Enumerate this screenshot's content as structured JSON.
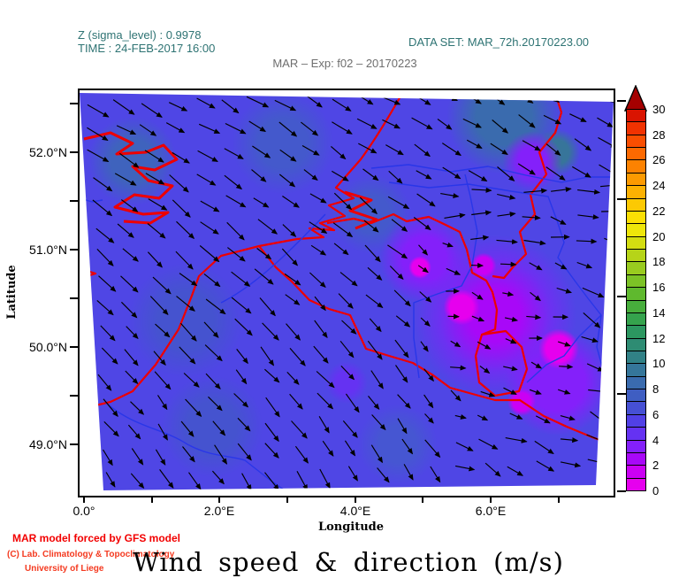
{
  "header": {
    "sigma_line": "Z (sigma_level) : 0.9978",
    "time_line": "TIME : 24-FEB-2017 16:00",
    "dataset_line": "DATA SET: MAR_72h.20170223.00",
    "experiment_line": "MAR – Exp: f02 – 20170223",
    "header_color": "#2e7373",
    "experiment_color": "#6e6e6e"
  },
  "axes": {
    "x_label": "Longitude",
    "y_label": "Latitude",
    "x_tick_labels": [
      "0.0°",
      "2.0°E",
      "4.0°E",
      "6.0°E"
    ],
    "y_tick_labels": [
      "52.0°N",
      "51.0°N",
      "50.0°N",
      "49.0°N"
    ]
  },
  "colorbar": {
    "min": 0,
    "max": 30,
    "label_step": 2,
    "labels": [
      "0",
      "2",
      "4",
      "6",
      "8",
      "10",
      "12",
      "14",
      "16",
      "18",
      "20",
      "22",
      "24",
      "26",
      "28",
      "30"
    ],
    "colors_bottom_to_top": [
      "#e600ee",
      "#cb00f4",
      "#a808f8",
      "#8420fa",
      "#6532f2",
      "#5140e6",
      "#4650d4",
      "#3f5ec2",
      "#3a6bae",
      "#35769a",
      "#318186",
      "#2e8c73",
      "#2c9760",
      "#35a34d",
      "#47ae3c",
      "#5fb92e",
      "#7cc226",
      "#99cb1f",
      "#b6d418",
      "#d3dd11",
      "#eee60a",
      "#fbdf04",
      "#fcc903",
      "#fcb102",
      "#fc9a01",
      "#fc8201",
      "#fc6901",
      "#f94e01",
      "#f13201",
      "#d91401"
    ],
    "overflow_color": "#a50000"
  },
  "footer": {
    "credit1": "MAR model forced by GFS model",
    "credit2": "(C) Lab. Climatology & Topoclimatology",
    "credit3": "University of Liege",
    "credit1_color": "#f20000",
    "credit23_color": "#f43a20",
    "title": "Wind speed & direction (m/s)"
  },
  "chart_data": {
    "type": "heatmap",
    "subtype": "wind-vector-map",
    "title": "Wind speed & direction (m/s)",
    "subtitle": "MAR – Exp: f02 – 20170223",
    "dataset": "MAR_72h.20170223.00",
    "sigma_level": 0.9978,
    "valid_time": "24-FEB-2017 16:00",
    "xlabel": "Longitude",
    "ylabel": "Latitude",
    "x_range_deg_east": [
      0.0,
      7.8
    ],
    "y_range_deg_north": [
      48.5,
      52.6
    ],
    "units": "m/s",
    "colorbar_range": [
      0,
      30
    ],
    "colorbar_step": 2,
    "field_summary": "Wind speed mostly 4-6 m/s (blue) across Belgium/N-France/Netherlands; 6-10 m/s (steel/teal) in NE corner and NW; calm patches 0-4 m/s (purple/magenta) over E Belgium and W Germany; vectors blow from NW toward SE, becoming easterly and weaker in the SE quadrant",
    "vectors": {
      "grid_cols": 20,
      "grid_rows": 16,
      "mean_direction_toward_deg_cw_from_east": 42,
      "mean_speed_ms": 5
    },
    "map_overlays": [
      "country-borders-red",
      "coastlines-red",
      "rivers-blue"
    ]
  }
}
